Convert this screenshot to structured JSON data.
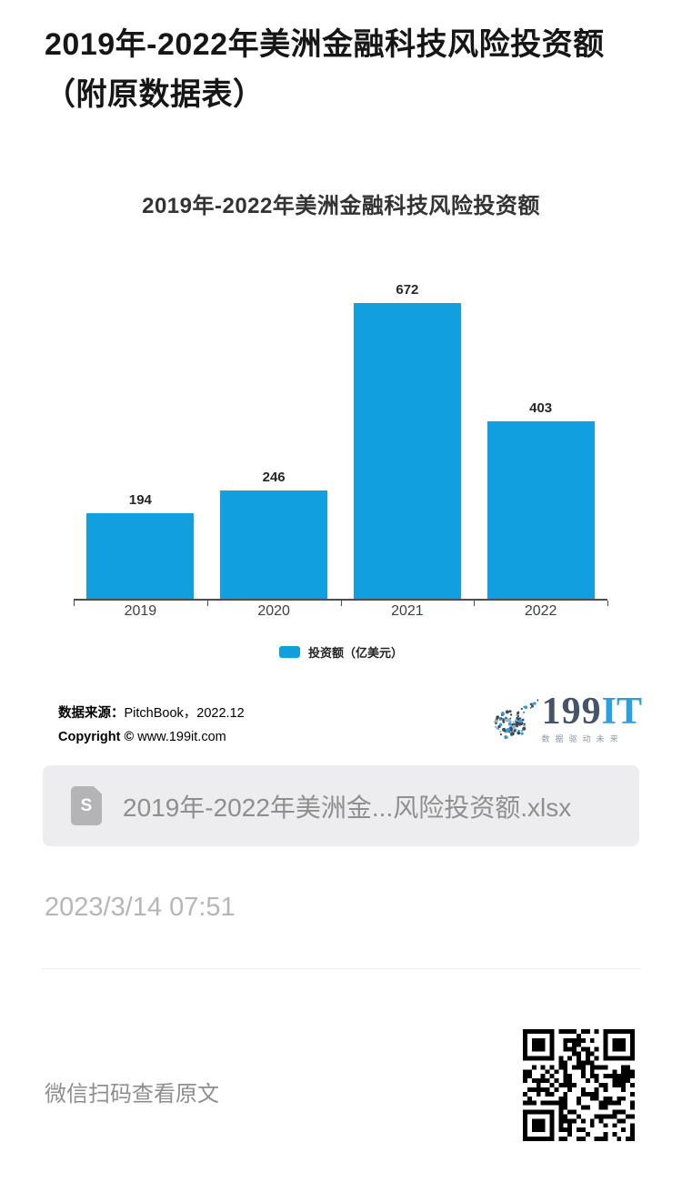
{
  "page": {
    "title": "2019年-2022年美洲金融科技风险投资额（附原数据表）",
    "publish_time": "2023/3/14 07:51",
    "scan_hint": "微信扫码查看原文"
  },
  "chart_data": {
    "type": "bar",
    "title": "2019年-2022年美洲金融科技风险投资额",
    "categories": [
      "2019",
      "2020",
      "2021",
      "2022"
    ],
    "values": [
      194,
      246,
      672,
      403
    ],
    "series_name": "投资额（亿美元）",
    "xlabel": "",
    "ylabel": "",
    "ylim": [
      0,
      672
    ],
    "grid": false,
    "legend_position": "bottom",
    "bar_color": "#129fdf",
    "value_labels": [
      "194",
      "246",
      "672",
      "403"
    ]
  },
  "chart_footer": {
    "source_label": "数据来源：",
    "source_value": "PitchBook，2022.12",
    "copyright_label": "Copyright ©",
    "copyright_value": " www.199it.com",
    "logo_199": "199",
    "logo_it": "IT",
    "logo_tagline": "数据驱动未来"
  },
  "attachment": {
    "file_name": "2019年-2022年美洲金...风险投资额.xlsx",
    "icon_letter": "S"
  }
}
